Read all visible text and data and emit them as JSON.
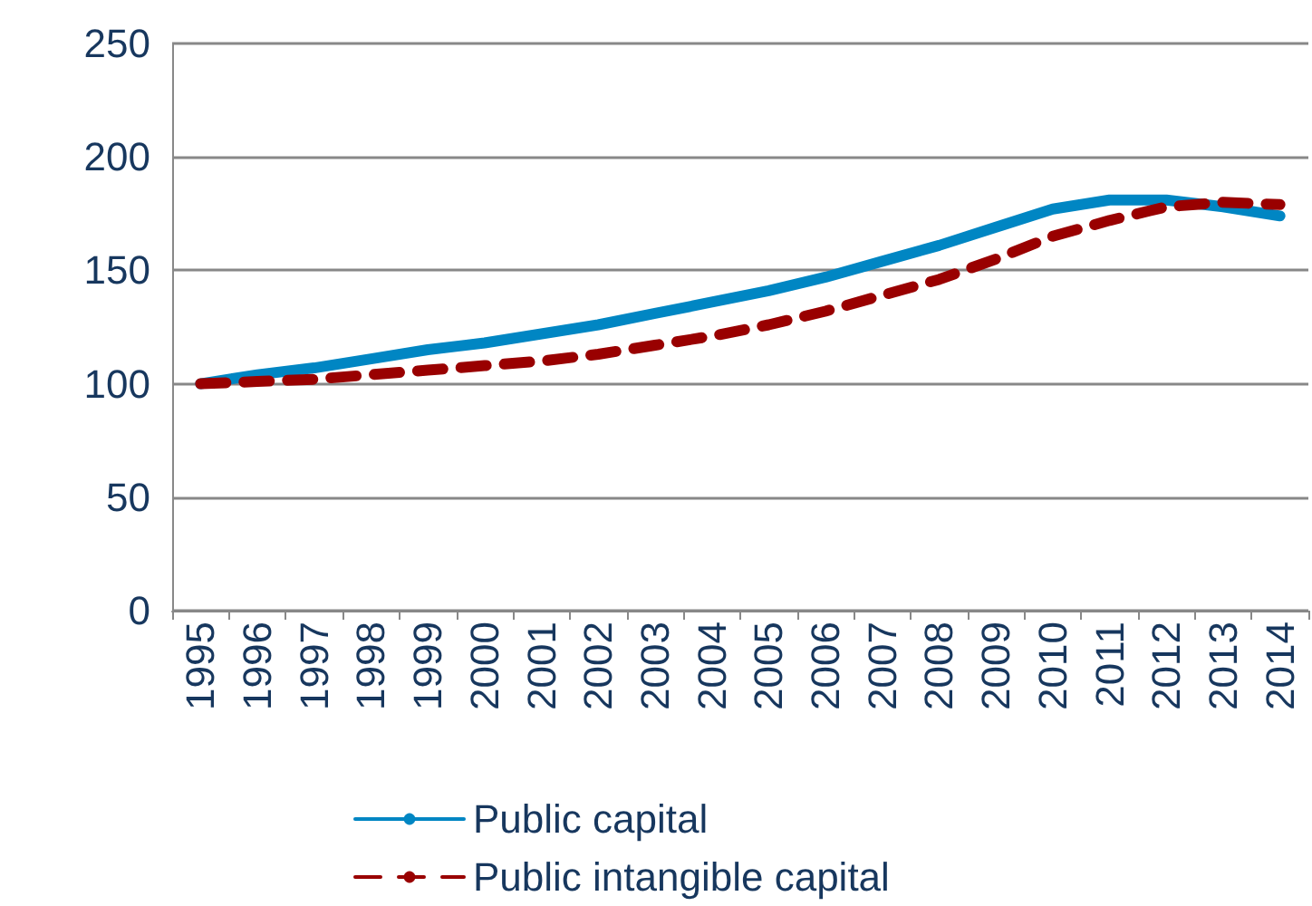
{
  "chart_data": {
    "type": "line",
    "categories": [
      "1995",
      "1996",
      "1997",
      "1998",
      "1999",
      "2000",
      "2001",
      "2002",
      "2003",
      "2004",
      "2005",
      "2006",
      "2007",
      "2008",
      "2009",
      "2010",
      "2011",
      "2012",
      "2013",
      "2014"
    ],
    "series": [
      {
        "name": "Public capital",
        "color": "#0086c3",
        "line_style": "solid",
        "values": [
          100,
          104,
          107,
          111,
          115,
          118,
          122,
          126,
          131,
          136,
          141,
          147,
          154,
          161,
          169,
          177,
          181,
          181,
          178,
          174
        ]
      },
      {
        "name": "Public intangible capital",
        "color": "#990000",
        "line_style": "dashed",
        "values": [
          100,
          101,
          102,
          104,
          106,
          108,
          110,
          113,
          117,
          121,
          126,
          132,
          139,
          146,
          155,
          165,
          172,
          178,
          180,
          179
        ]
      }
    ],
    "ylim": [
      0,
      250
    ],
    "yticks": [
      0,
      50,
      100,
      150,
      200,
      250
    ],
    "grid": "y",
    "legend": "bottom",
    "marker": "none"
  }
}
